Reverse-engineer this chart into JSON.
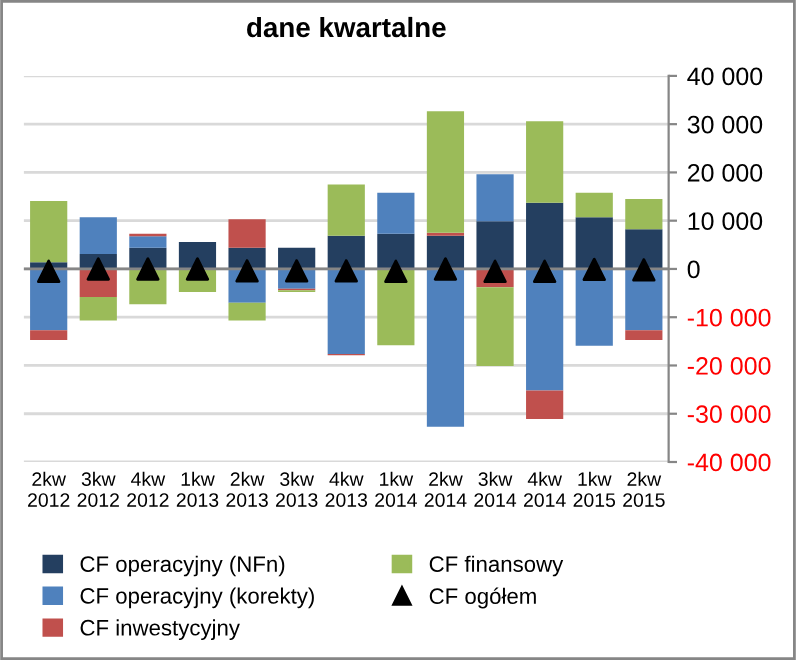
{
  "chart_data": {
    "type": "bar",
    "title": "dane kwartalne",
    "stacked": true,
    "categories": [
      "2kw\n2012",
      "3kw\n2012",
      "4kw\n2012",
      "1kw\n2013",
      "2kw\n2013",
      "3kw\n2013",
      "4kw\n2013",
      "1kw\n2014",
      "2kw\n2014",
      "3kw\n2014",
      "4kw\n2014",
      "1kw\n2015",
      "2kw\n2015"
    ],
    "series": [
      {
        "name": "CF operacyjny (NFn)",
        "color": "#243f60",
        "values": [
          1400,
          3100,
          4400,
          5600,
          4400,
          4400,
          6900,
          7300,
          6900,
          9900,
          13700,
          10700,
          8200
        ]
      },
      {
        "name": "CF operacyjny (korekty)",
        "color": "#4f81bd",
        "values": [
          -12700,
          7600,
          2400,
          0,
          -7000,
          -4100,
          -17600,
          8500,
          -32700,
          9700,
          -25200,
          -15900,
          -12700
        ]
      },
      {
        "name": "CF inwestycyjny",
        "color": "#c0504d",
        "values": [
          -2000,
          -5800,
          500,
          null,
          5900,
          -300,
          -300,
          null,
          600,
          -3800,
          -5900,
          0,
          -2000
        ]
      },
      {
        "name": "CF finansowy",
        "color": "#9bbb59",
        "values": [
          12700,
          -4900,
          -7300,
          -4800,
          -3700,
          -400,
          10600,
          -15800,
          25200,
          -16300,
          16900,
          5100,
          6300
        ]
      },
      {
        "name": "CF ogółem",
        "type": "scatter",
        "marker": "triangle",
        "color": "#000000",
        "values": [
          -500,
          0,
          0,
          0,
          -400,
          -400,
          -400,
          -500,
          0,
          -500,
          -500,
          -100,
          -200
        ]
      }
    ],
    "ylim": [
      -40000,
      40000
    ],
    "yticks": [
      {
        "value": -40000,
        "label": "-40 000"
      },
      {
        "value": -30000,
        "label": "-30 000"
      },
      {
        "value": -20000,
        "label": "-20 000"
      },
      {
        "value": -10000,
        "label": "-10 000"
      },
      0,
      {
        "value": 10000,
        "label": "10 000"
      },
      {
        "value": 20000,
        "label": "20 000"
      },
      {
        "value": 30000,
        "label": "30 000"
      },
      {
        "value": 40000,
        "label": "40 000"
      }
    ],
    "grid": "y",
    "legend": "bottom"
  }
}
